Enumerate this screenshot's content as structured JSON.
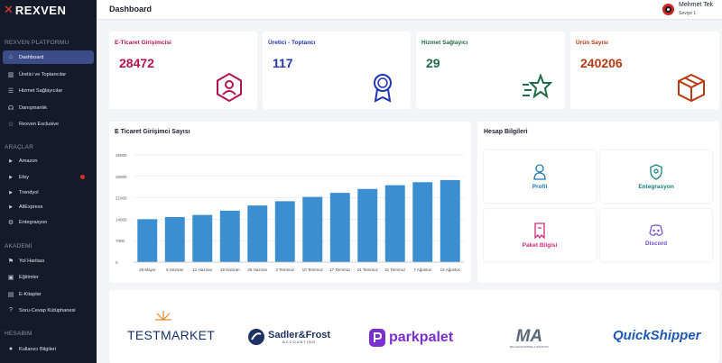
{
  "brand": {
    "logo_text": "REXVEN",
    "accent": "#e63b2e"
  },
  "sidebar": {
    "sections": [
      {
        "title": "REXVEN PLATFORMU"
      },
      {
        "title": "ARAÇLAR"
      },
      {
        "title": "AKADEMİ"
      },
      {
        "title": "HESABIM"
      }
    ],
    "items": [
      {
        "label": "Dashboard",
        "icon": "home-icon",
        "active": true
      },
      {
        "label": "Üretici ve Toptancılar",
        "icon": "factory-icon"
      },
      {
        "label": "Hizmet Sağlayıcılar",
        "icon": "list-icon"
      },
      {
        "label": "Danışmanlık",
        "icon": "headset-icon"
      },
      {
        "label": "Rexven Exclusive",
        "icon": "star-icon"
      },
      {
        "label": "Amazon",
        "icon": "caret-right-icon"
      },
      {
        "label": "Etsy",
        "icon": "caret-right-icon",
        "badge_color": "#e02b2b"
      },
      {
        "label": "Trendyol",
        "icon": "caret-right-icon"
      },
      {
        "label": "AliExpress",
        "icon": "caret-right-icon"
      },
      {
        "label": "Entegrasyon",
        "icon": "gear-icon"
      },
      {
        "label": "Yol Haritası",
        "icon": "map-icon"
      },
      {
        "label": "Eğitimler",
        "icon": "video-icon"
      },
      {
        "label": "E-Kitaplar",
        "icon": "book-icon"
      },
      {
        "label": "Soru-Cevap Kütüphanesi",
        "icon": "question-icon"
      },
      {
        "label": "Kullanıcı Bilgileri",
        "icon": "user-icon"
      }
    ]
  },
  "header": {
    "title": "Dashboard",
    "user_name": "Mehmet Tek",
    "user_level": "Seviye 1"
  },
  "stats": [
    {
      "label": "E-Ticaret Girişimcisi",
      "value": "28472",
      "color": "#b3124e",
      "icon": "user-hexagon-icon"
    },
    {
      "label": "Üretici - Toptancı",
      "value": "117",
      "color": "#1f35b0",
      "icon": "award-icon"
    },
    {
      "label": "Hizmet Sağlayıcı",
      "value": "29",
      "color": "#1e6b45",
      "icon": "fast-star-icon"
    },
    {
      "label": "Ürün Sayısı",
      "value": "240206",
      "color": "#b63a12",
      "icon": "package-icon"
    }
  ],
  "chart_data": {
    "type": "bar",
    "title": "E Ticaret Girişimci Sayısı",
    "categories": [
      "29 Mayıs",
      "5 Haziran",
      "12 Haziran",
      "19 Haziran",
      "26 Haziran",
      "3 Temmuz",
      "10 Temmuz",
      "17 Temmuz",
      "24 Temmuz",
      "31 Temmuz",
      "7 Ağustos",
      "14 Ağustos"
    ],
    "values": [
      14000,
      14700,
      15400,
      16800,
      18500,
      19900,
      21300,
      22600,
      23900,
      25100,
      26100,
      26800
    ],
    "ylim": [
      0,
      35000
    ],
    "yticks": [
      "0",
      "7000",
      "14000",
      "21000",
      "28000",
      "35000"
    ],
    "bar_color": "#3b8fd0",
    "grid": true
  },
  "account": {
    "title": "Hesap Bilgileri",
    "tiles": [
      {
        "label": "Profil",
        "icon": "user-icon",
        "color": "#1f78b4"
      },
      {
        "label": "Entegrasyon",
        "icon": "shield-pin-icon",
        "color": "#15827e"
      },
      {
        "label": "Paket Bilgisi",
        "icon": "package-icon",
        "color": "#d12a7a"
      },
      {
        "label": "Discord",
        "icon": "discord-icon",
        "color": "#6e4bd8"
      }
    ]
  },
  "partners": [
    {
      "name": "TESTMARKET",
      "color": "#16306b"
    },
    {
      "name": "Sadler&Frost",
      "sub": "ACCOUNTING",
      "color": "#1e3266"
    },
    {
      "name": "parkpalet",
      "color": "#7a2fd0"
    },
    {
      "name": "MA",
      "sub": "BELGELENDİRME & DENETİM",
      "color": "#5b6a78"
    },
    {
      "name": "QuickShipper",
      "color": "#1e5ab4",
      "accent": "#f5a100"
    }
  ]
}
